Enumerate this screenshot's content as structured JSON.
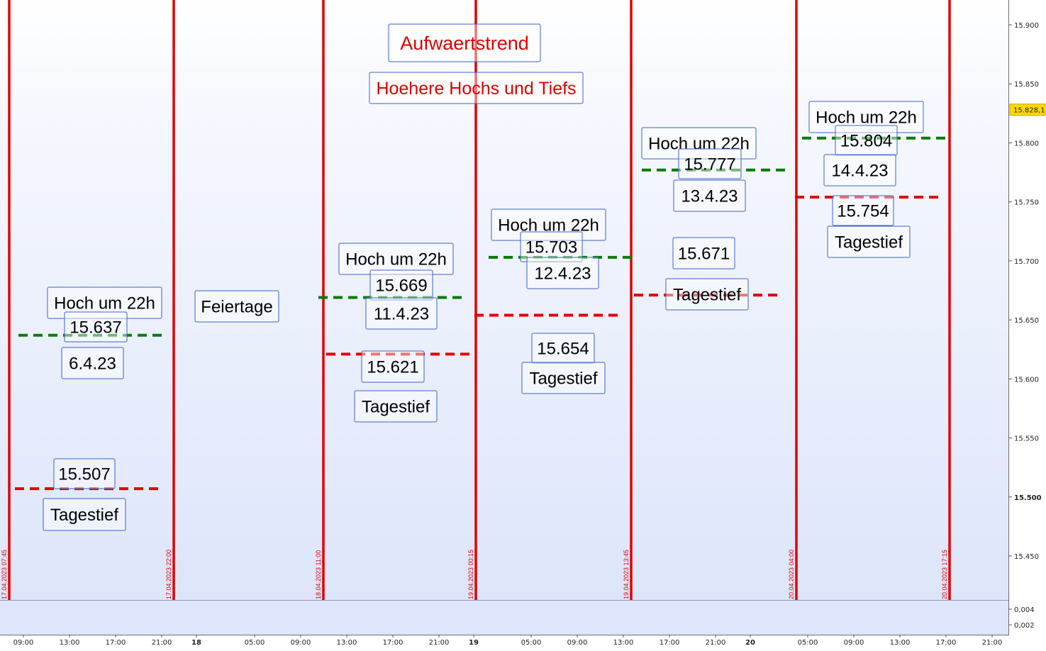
{
  "colors": {
    "trend": "#e00000",
    "high": "#0a7a0a",
    "low": "#e00000",
    "box_border": "#3a63c8",
    "vline": "#e00000"
  },
  "chart_data": {
    "type": "line",
    "y_axis": {
      "ylim": [
        15415,
        15935
      ],
      "ticks": [
        "15.900",
        "15.850",
        "15.800",
        "15.750",
        "15.700",
        "15.650",
        "15.600",
        "15.550",
        "15.500",
        "15.450"
      ],
      "tick_values": [
        15900,
        15850,
        15800,
        15750,
        15700,
        15650,
        15600,
        15550,
        15500,
        15450
      ],
      "current_price": "15.828,1",
      "current_value": 15828.1
    },
    "sub_axis": {
      "ticks": [
        "0,004",
        "0,002"
      ]
    },
    "x_axis": {
      "time_ticks": [
        "09:00",
        "13:00",
        "17:00",
        "21:00",
        "18",
        "05:00",
        "09:00",
        "13:00",
        "17:00",
        "21:00",
        "19",
        "05:00",
        "09:00",
        "13:00",
        "17:00",
        "21:00",
        "20",
        "05:00",
        "09:00",
        "13:00",
        "17:00",
        "21:00"
      ],
      "day_ticks": [
        "18",
        "19",
        "20"
      ]
    },
    "separators": [
      {
        "label": "17.04.2023 07:45"
      },
      {
        "label": "17.04.2023 22:00"
      },
      {
        "label": "18.04.2023 11:00"
      },
      {
        "label": "19.04.2023 00:15"
      },
      {
        "label": "19.04.2023 13:45"
      },
      {
        "label": "20.04.2023 04:00"
      },
      {
        "label": "20.04.2023 17:15"
      }
    ],
    "annotations": {
      "title": "Aufwaertstrend",
      "subtitle": "Hoehere Hochs und Tiefs",
      "holiday": "Feiertage"
    },
    "days": [
      {
        "date": "6.4.23",
        "high_label": "Hoch um 22h",
        "high": 15637,
        "high_text": "15.637",
        "low_label": "Tagestief",
        "low": 15507,
        "low_text": "15.507"
      },
      {
        "date": "11.4.23",
        "high_label": "Hoch um 22h",
        "high": 15669,
        "high_text": "15.669",
        "low_label": "Tagestief",
        "low": 15621,
        "low_text": "15.621"
      },
      {
        "date": "12.4.23",
        "high_label": "Hoch um 22h",
        "high": 15703,
        "high_text": "15.703",
        "low_label": "Tagestief",
        "low": 15654,
        "low_text": "15.654"
      },
      {
        "date": "13.4.23",
        "high_label": "Hoch um 22h",
        "high": 15777,
        "high_text": "15.777",
        "low_label": "Tagestief",
        "low": 15671,
        "low_text": "15.671"
      },
      {
        "date": "14.4.23",
        "high_label": "Hoch um 22h",
        "high": 15804,
        "high_text": "15.804",
        "low_label": "Tagestief",
        "low": 15754,
        "low_text": "15.754"
      }
    ]
  }
}
